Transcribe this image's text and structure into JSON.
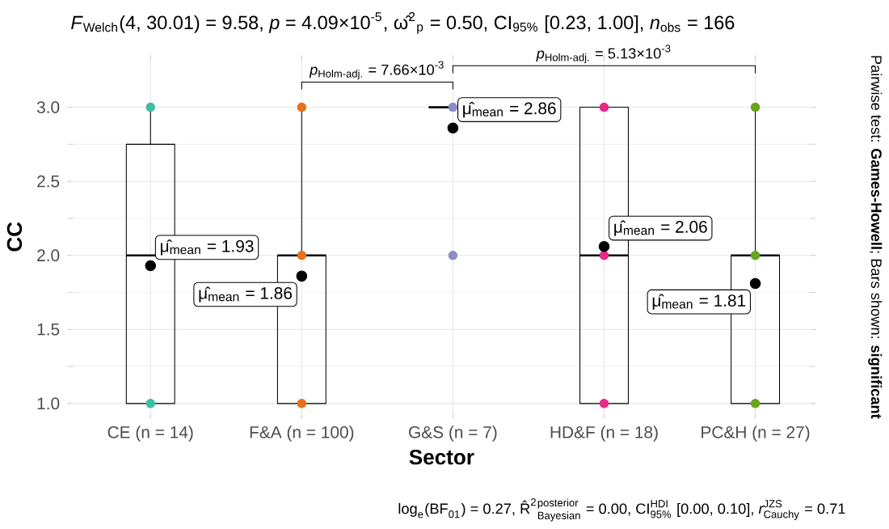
{
  "chart_data": {
    "type": "box",
    "title": "*F*$_{Welch}$(4, 30.01) = 9.58, *p* = 4.09×10$^{-5}$, ω̂$^{2}$$_{p}$ = 0.50, CI$_{95%}$ [0.23, 1.00], *n*$_{obs}$ = 166",
    "xlabel": "Sector",
    "ylabel": "CC",
    "categories": [
      "CE (n = 14)",
      "F&A (n = 100)",
      "G&S (n = 7)",
      "HD&F (n = 18)",
      "PC&H (n = 27)"
    ],
    "boxes": [
      {
        "low": 1,
        "q1": 1,
        "median": 2,
        "q3": 2.75,
        "high": 3,
        "mean": 1.93
      },
      {
        "low": 1,
        "q1": 1,
        "median": 2,
        "q3": 2,
        "high": 3,
        "mean": 1.86
      },
      {
        "low": 3,
        "q1": 3,
        "median": 3,
        "q3": 3,
        "high": 3,
        "mean": 2.86
      },
      {
        "low": 1,
        "q1": 1,
        "median": 2,
        "q3": 3,
        "high": 3,
        "mean": 2.06
      },
      {
        "low": 1,
        "q1": 1,
        "median": 2,
        "q3": 2,
        "high": 3,
        "mean": 1.81
      }
    ],
    "series": [
      {
        "type": "scatter",
        "color": "#3dbfa0",
        "x": [
          "CE (n = 14)",
          "CE (n = 14)"
        ],
        "values": [
          3,
          1
        ]
      },
      {
        "type": "scatter",
        "color": "#e8711a",
        "x": [
          "F&A (n = 100)",
          "F&A (n = 100)",
          "F&A (n = 100)"
        ],
        "values": [
          3,
          2,
          1
        ]
      },
      {
        "type": "scatter",
        "color": "#8c8cc8",
        "x": [
          "G&S (n = 7)",
          "G&S (n = 7)"
        ],
        "values": [
          3,
          2
        ]
      },
      {
        "type": "scatter",
        "color": "#e7298a",
        "x": [
          "HD&F (n = 18)",
          "HD&F (n = 18)",
          "HD&F (n = 18)"
        ],
        "values": [
          3,
          2,
          1
        ]
      },
      {
        "type": "scatter",
        "color": "#66a61e",
        "x": [
          "PC&H (n = 27)",
          "PC&H (n = 27)",
          "PC&H (n = 27)"
        ],
        "values": [
          3,
          2,
          1
        ]
      }
    ],
    "ylim": [
      0.9,
      3.35
    ],
    "yticks": [
      {
        "value": 1,
        "label": "1.0"
      },
      {
        "value": 1.5,
        "label": "1.5"
      },
      {
        "value": 2,
        "label": "2.0"
      },
      {
        "value": 2.5,
        "label": "2.5"
      },
      {
        "value": 3,
        "label": "3.0"
      }
    ],
    "grid": true,
    "annotations": [
      "μ̂$_{mean}$ = 1.93",
      "μ̂$_{mean}$ = 1.86",
      "μ̂$_{mean}$ = 2.86",
      "μ̂$_{mean}$ = 2.06",
      "μ̂$_{mean}$ = 1.81",
      "*p*$_{Holm-adj.}$ = 7.66×10$^{-3}$",
      "*p*$_{Holm-adj.}$ = 5.13×10$^{-3}$",
      "Pairwise test: **Games-Howell**; Bars shown: **significant**",
      "\\text{log}_{\\text{e}}\\text{(BF}_{\\text{01}}\\text{) = 0.27, R̂}^{\\text{2}}{}^{\\text{posterior}}_{\\text{Bayesian}}\\text{ = 0.00, CI}^{\\text{HDI}}_{\\text{95\\%}}\\text{ [0.00, 0.10], }\\textit{r}^{\\text{JZS}}_{\\text{Cauchy}}\\text{ = 0.71}"
    ]
  }
}
